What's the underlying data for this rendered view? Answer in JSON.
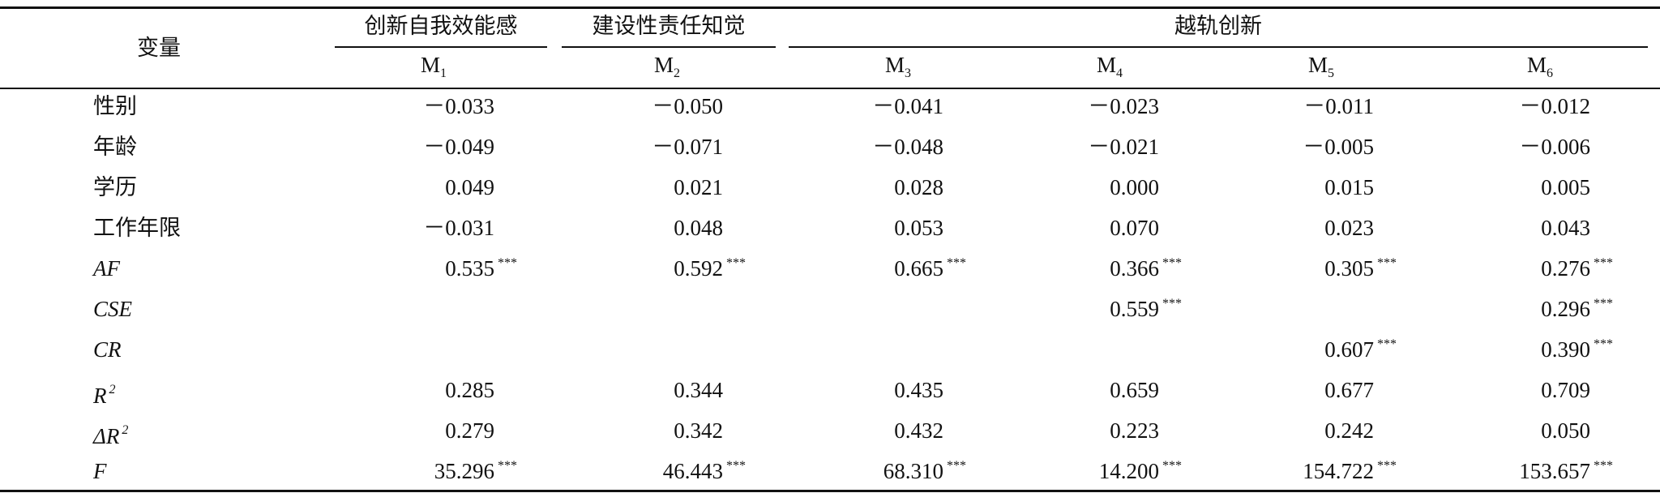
{
  "table": {
    "corner": "变量",
    "groups": [
      {
        "label": "创新自我效能感",
        "span": [
          0,
          0
        ]
      },
      {
        "label": "建设性责任知觉",
        "span": [
          1,
          1
        ]
      },
      {
        "label": "越轨创新",
        "span": [
          2,
          5
        ]
      }
    ],
    "models": [
      {
        "base": "M",
        "sub": "1"
      },
      {
        "base": "M",
        "sub": "2"
      },
      {
        "base": "M",
        "sub": "3"
      },
      {
        "base": "M",
        "sub": "4"
      },
      {
        "base": "M",
        "sub": "5"
      },
      {
        "base": "M",
        "sub": "6"
      }
    ],
    "rows": [
      {
        "label": {
          "text": "性别"
        },
        "cells": [
          {
            "value": "－0.033"
          },
          {
            "value": "－0.050"
          },
          {
            "value": "－0.041"
          },
          {
            "value": "－0.023"
          },
          {
            "value": "－0.011"
          },
          {
            "value": "－0.012"
          }
        ]
      },
      {
        "label": {
          "text": "年龄"
        },
        "cells": [
          {
            "value": "－0.049"
          },
          {
            "value": "－0.071"
          },
          {
            "value": "－0.048"
          },
          {
            "value": "－0.021"
          },
          {
            "value": "－0.005"
          },
          {
            "value": "－0.006"
          }
        ]
      },
      {
        "label": {
          "text": "学历"
        },
        "cells": [
          {
            "value": "0.049"
          },
          {
            "value": "0.021"
          },
          {
            "value": "0.028"
          },
          {
            "value": "0.000"
          },
          {
            "value": "0.015"
          },
          {
            "value": "0.005"
          }
        ]
      },
      {
        "label": {
          "text": "工作年限"
        },
        "cells": [
          {
            "value": "－0.031"
          },
          {
            "value": "0.048"
          },
          {
            "value": "0.053"
          },
          {
            "value": "0.070"
          },
          {
            "value": "0.023"
          },
          {
            "value": "0.043"
          }
        ]
      },
      {
        "label": {
          "text": "AF",
          "italic": true
        },
        "cells": [
          {
            "value": "0.535",
            "stars": "***"
          },
          {
            "value": "0.592",
            "stars": "***"
          },
          {
            "value": "0.665",
            "stars": "***"
          },
          {
            "value": "0.366",
            "stars": "***"
          },
          {
            "value": "0.305",
            "stars": "***"
          },
          {
            "value": "0.276",
            "stars": "***"
          }
        ]
      },
      {
        "label": {
          "text": "CSE",
          "italic": true
        },
        "cells": [
          null,
          null,
          null,
          {
            "value": "0.559",
            "stars": "***"
          },
          null,
          {
            "value": "0.296",
            "stars": "***"
          }
        ]
      },
      {
        "label": {
          "text": "CR",
          "italic": true
        },
        "cells": [
          null,
          null,
          null,
          null,
          {
            "value": "0.607",
            "stars": "***"
          },
          {
            "value": "0.390",
            "stars": "***"
          }
        ]
      },
      {
        "label": {
          "text": "R",
          "sup": "2",
          "italic": true
        },
        "cells": [
          {
            "value": "0.285"
          },
          {
            "value": "0.344"
          },
          {
            "value": "0.435"
          },
          {
            "value": "0.659"
          },
          {
            "value": "0.677"
          },
          {
            "value": "0.709"
          }
        ]
      },
      {
        "label": {
          "text": "ΔR",
          "sup": "2",
          "italic": true
        },
        "cells": [
          {
            "value": "0.279"
          },
          {
            "value": "0.342"
          },
          {
            "value": "0.432"
          },
          {
            "value": "0.223"
          },
          {
            "value": "0.242"
          },
          {
            "value": "0.050"
          }
        ]
      },
      {
        "label": {
          "text": "F",
          "italic": true
        },
        "cells": [
          {
            "value": "35.296",
            "stars": "***"
          },
          {
            "value": "46.443",
            "stars": "***"
          },
          {
            "value": "68.310",
            "stars": "***"
          },
          {
            "value": "14.200",
            "stars": "***"
          },
          {
            "value": "154.722",
            "stars": "***"
          },
          {
            "value": "153.657",
            "stars": "***"
          }
        ]
      }
    ]
  }
}
